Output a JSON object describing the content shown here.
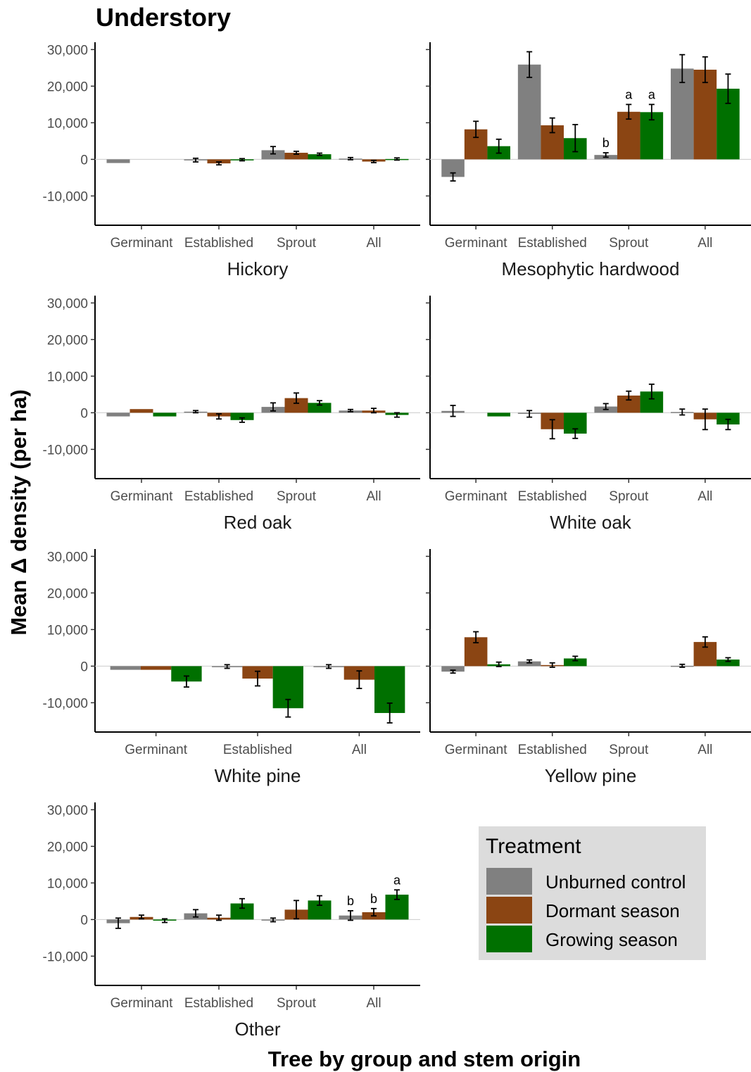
{
  "title": "Understory",
  "xlabel": "Tree by group and stem origin",
  "ylabel": "Mean Δ density (per ha)",
  "colors": {
    "Unburned control": "#808080",
    "Dormant season": "#8B4513",
    "Growing season": "#007000"
  },
  "legend": {
    "title": "Treatment",
    "items": [
      "Unburned control",
      "Dormant season",
      "Growing season"
    ]
  },
  "chart_data": [
    {
      "type": "bar",
      "title": "Hickory",
      "ylim": [
        -18000,
        32000
      ],
      "yticks": [
        30000,
        20000,
        10000,
        0,
        -10000
      ],
      "ytick_labels": [
        "30,000",
        "20,000",
        "10,000",
        "0",
        "-10,000"
      ],
      "categories": [
        "Germinant",
        "Established",
        "Sprout",
        "All"
      ],
      "series": [
        {
          "name": "Unburned control",
          "values": [
            -1000,
            -200,
            2500,
            200
          ],
          "errors": [
            null,
            500,
            1000,
            300
          ],
          "labels": [
            "",
            "",
            "",
            ""
          ]
        },
        {
          "name": "Dormant season",
          "values": [
            null,
            -1100,
            1800,
            -600
          ],
          "errors": [
            null,
            400,
            400,
            300
          ],
          "labels": [
            "",
            "",
            "",
            ""
          ]
        },
        {
          "name": "Growing season",
          "values": [
            null,
            -100,
            1400,
            100
          ],
          "errors": [
            null,
            300,
            300,
            300
          ],
          "labels": [
            "",
            "",
            "",
            ""
          ]
        }
      ]
    },
    {
      "type": "bar",
      "title": "Mesophytic hardwood",
      "ylim": [
        -18000,
        32000
      ],
      "yticks": [
        30000,
        20000,
        10000,
        0,
        -10000
      ],
      "ytick_labels": [
        "30,000",
        "20,000",
        "10,000",
        "0",
        "-10,000"
      ],
      "categories": [
        "Germinant",
        "Established",
        "Sprout",
        "All"
      ],
      "series": [
        {
          "name": "Unburned control",
          "values": [
            -4800,
            25900,
            1200,
            24800
          ],
          "errors": [
            1100,
            3500,
            600,
            3800
          ],
          "labels": [
            "",
            "",
            "b",
            ""
          ]
        },
        {
          "name": "Dormant season",
          "values": [
            8200,
            9300,
            13000,
            24500
          ],
          "errors": [
            2200,
            2000,
            2000,
            3500
          ],
          "labels": [
            "",
            "",
            "a",
            ""
          ]
        },
        {
          "name": "Growing season",
          "values": [
            3600,
            5800,
            12900,
            19300
          ],
          "errors": [
            1900,
            3700,
            2100,
            4000
          ],
          "labels": [
            "",
            "",
            "a",
            ""
          ]
        }
      ]
    },
    {
      "type": "bar",
      "title": "Red oak",
      "ylim": [
        -18000,
        32000
      ],
      "yticks": [
        30000,
        20000,
        10000,
        0,
        -10000
      ],
      "ytick_labels": [
        "30,000",
        "20,000",
        "10,000",
        "0",
        "-10,000"
      ],
      "categories": [
        "Germinant",
        "Established",
        "Sprout",
        "All"
      ],
      "series": [
        {
          "name": "Unburned control",
          "values": [
            -1000,
            300,
            1600,
            600
          ],
          "errors": [
            null,
            300,
            1100,
            300
          ],
          "labels": [
            "",
            "",
            "",
            ""
          ]
        },
        {
          "name": "Dormant season",
          "values": [
            1000,
            -1000,
            4000,
            600
          ],
          "errors": [
            null,
            700,
            1400,
            600
          ],
          "labels": [
            "",
            "",
            "",
            ""
          ]
        },
        {
          "name": "Growing season",
          "values": [
            -1000,
            -2000,
            2700,
            -600
          ],
          "errors": [
            null,
            600,
            600,
            600
          ],
          "labels": [
            "",
            "",
            "",
            ""
          ]
        }
      ]
    },
    {
      "type": "bar",
      "title": "White oak",
      "ylim": [
        -18000,
        32000
      ],
      "yticks": [
        30000,
        20000,
        10000,
        0,
        -10000
      ],
      "ytick_labels": [
        "30,000",
        "20,000",
        "10,000",
        "0",
        "-10,000"
      ],
      "categories": [
        "Germinant",
        "Established",
        "Sprout",
        "All"
      ],
      "series": [
        {
          "name": "Unburned control",
          "values": [
            500,
            -300,
            1700,
            200
          ],
          "errors": [
            1500,
            900,
            800,
            800
          ],
          "labels": [
            "",
            "",
            "",
            ""
          ]
        },
        {
          "name": "Dormant season",
          "values": [
            null,
            -4500,
            4700,
            -1800
          ],
          "errors": [
            null,
            2600,
            1200,
            2800
          ],
          "labels": [
            "",
            "",
            "",
            ""
          ]
        },
        {
          "name": "Growing season",
          "values": [
            -1000,
            -5700,
            5800,
            -3200
          ],
          "errors": [
            null,
            1300,
            2000,
            1400
          ],
          "labels": [
            "",
            "",
            "",
            ""
          ]
        }
      ]
    },
    {
      "type": "bar",
      "title": "White pine",
      "ylim": [
        -18000,
        32000
      ],
      "yticks": [
        30000,
        20000,
        10000,
        0,
        -10000
      ],
      "ytick_labels": [
        "30,000",
        "20,000",
        "10,000",
        "0",
        "-10,000"
      ],
      "categories": [
        "Germinant",
        "Established",
        "All"
      ],
      "series": [
        {
          "name": "Unburned control",
          "values": [
            -1000,
            -100,
            -100
          ],
          "errors": [
            null,
            500,
            500
          ],
          "labels": [
            "",
            "",
            ""
          ]
        },
        {
          "name": "Dormant season",
          "values": [
            -1000,
            -3400,
            -3700
          ],
          "errors": [
            null,
            2000,
            2400
          ],
          "labels": [
            "",
            "",
            ""
          ]
        },
        {
          "name": "Growing season",
          "values": [
            -4200,
            -11500,
            -12800
          ],
          "errors": [
            1500,
            2400,
            2700
          ],
          "labels": [
            "",
            "",
            ""
          ]
        }
      ]
    },
    {
      "type": "bar",
      "title": "Yellow pine",
      "ylim": [
        -18000,
        32000
      ],
      "yticks": [
        30000,
        20000,
        10000,
        0,
        -10000
      ],
      "ytick_labels": [
        "30,000",
        "20,000",
        "10,000",
        "0",
        "-10,000"
      ],
      "categories": [
        "Germinant",
        "Established",
        "Sprout",
        "All"
      ],
      "series": [
        {
          "name": "Unburned control",
          "values": [
            -1500,
            1300,
            null,
            100
          ],
          "errors": [
            400,
            400,
            null,
            400
          ],
          "labels": [
            "",
            "",
            "",
            ""
          ]
        },
        {
          "name": "Dormant season",
          "values": [
            7900,
            300,
            null,
            6600
          ],
          "errors": [
            1500,
            600,
            null,
            1400
          ],
          "labels": [
            "",
            "",
            "",
            ""
          ]
        },
        {
          "name": "Growing season",
          "values": [
            500,
            2100,
            null,
            1800
          ],
          "errors": [
            600,
            600,
            null,
            500
          ],
          "labels": [
            "",
            "",
            "",
            ""
          ]
        }
      ]
    },
    {
      "type": "bar",
      "title": "Other",
      "ylim": [
        -18000,
        32000
      ],
      "yticks": [
        30000,
        20000,
        10000,
        0,
        -10000
      ],
      "ytick_labels": [
        "30,000",
        "20,000",
        "10,000",
        "0",
        "-10,000"
      ],
      "categories": [
        "Germinant",
        "Established",
        "Sprout",
        "All"
      ],
      "series": [
        {
          "name": "Unburned control",
          "values": [
            -1000,
            1700,
            -100,
            1100
          ],
          "errors": [
            1400,
            1000,
            500,
            1300
          ],
          "labels": [
            "",
            "",
            "",
            "b"
          ]
        },
        {
          "name": "Dormant season",
          "values": [
            700,
            500,
            2700,
            2000
          ],
          "errors": [
            500,
            700,
            2500,
            1000
          ],
          "labels": [
            "",
            "",
            "",
            "b"
          ]
        },
        {
          "name": "Growing season",
          "values": [
            -300,
            4400,
            5200,
            6800
          ],
          "errors": [
            500,
            1300,
            1300,
            1300
          ],
          "labels": [
            "",
            "",
            "",
            "a"
          ]
        }
      ]
    }
  ]
}
